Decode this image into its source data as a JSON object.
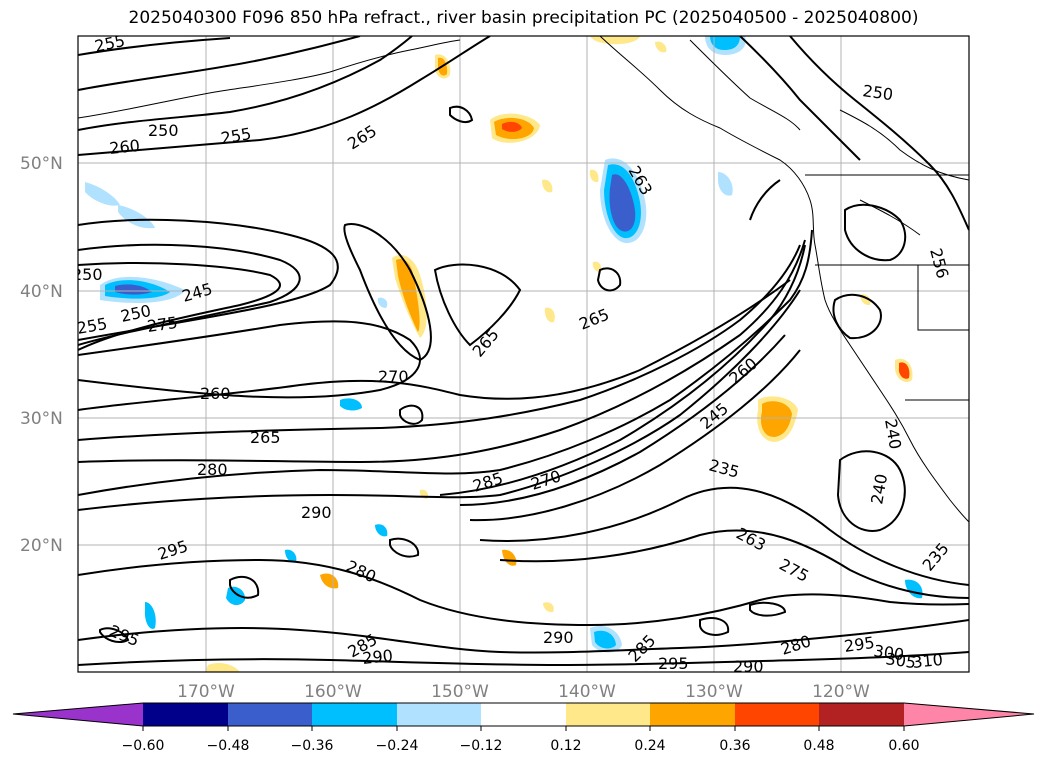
{
  "title": "2025040300 F096 850 hPa refract., river basin precipitation PC (2025040500 - 2025040800)",
  "lat_labels": [
    "50°N",
    "40°N",
    "30°N",
    "20°N"
  ],
  "lon_labels": [
    "170°W",
    "160°W",
    "150°W",
    "140°W",
    "130°W",
    "120°W"
  ],
  "contour_labels": [
    "255",
    "250",
    "260",
    "255",
    "265",
    "263",
    "250",
    "250",
    "245",
    "250",
    "275",
    "255",
    "256",
    "265",
    "265",
    "270",
    "260",
    "265",
    "280",
    "285",
    "270",
    "245",
    "260",
    "235",
    "240",
    "240",
    "290",
    "295",
    "280",
    "263",
    "275",
    "235",
    "295",
    "285",
    "290",
    "290",
    "285",
    "295",
    "290",
    "280",
    "295",
    "300",
    "305",
    "310"
  ],
  "colorbar": {
    "colors": [
      "#9933cc",
      "#00008b",
      "#3a5fcd",
      "#00bfff",
      "#b0e2ff",
      "#ffffff",
      "#ffe88a",
      "#ffa500",
      "#ff4500",
      "#b22222",
      "#ff85a8"
    ],
    "ticks": [
      "−0.60",
      "−0.48",
      "−0.36",
      "−0.24",
      "−0.12",
      "0.12",
      "0.24",
      "0.36",
      "0.48",
      "0.60"
    ]
  },
  "colors": {
    "gridline": "#b3b3b3",
    "coast": "#000000",
    "contour": "#000000",
    "axis_label": "#808080"
  }
}
